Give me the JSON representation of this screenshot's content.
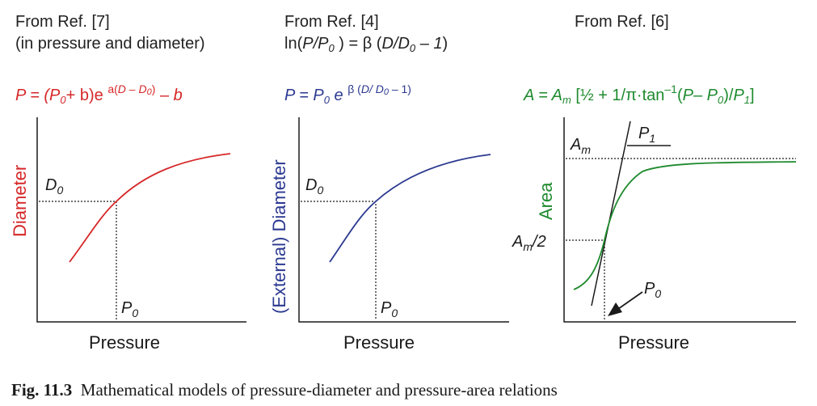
{
  "panels": [
    {
      "ref_line1": "From Ref. [7]",
      "ref_line2": "(in pressure and diameter)",
      "eq": {
        "a": "P = (P",
        "sub0": "0",
        "b": "+ b)e",
        "sup_a": "a(",
        "sup_D": "D – D",
        "sup_sub": "0",
        "sup_close": ")",
        "tail": " – b"
      },
      "ylabel": "Diameter",
      "xlabel": "Pressure",
      "point_y": "D",
      "point_y_sub": "0",
      "point_x": "P",
      "point_x_sub": "0"
    },
    {
      "ref_line1": "From Ref. [4]",
      "ref_line2": {
        "a": "ln(",
        "b": "P/P",
        "sub": "0",
        "c": " ) = β (",
        "d": "D/D",
        "sub2": "0",
        "e": " – 1",
        "f": ")"
      },
      "eq": {
        "a": "P = P",
        "sub0": "0",
        "b": " e",
        "sup_a": "β (",
        "sup_D": "D/ D",
        "sup_sub": "0",
        "sup_close": " – 1)"
      },
      "ylabel": "(External) Diameter",
      "xlabel": "Pressure",
      "point_y": "D",
      "point_y_sub": "0",
      "point_x": "P",
      "point_x_sub": "0"
    },
    {
      "ref_line1": "From Ref. [6]",
      "eq": {
        "a": "A = A",
        "sub_m": "m",
        "b": " [½ + 1/π·tan",
        "sup": "–1",
        "c": "(",
        "d": "P– P",
        "sub0": "0",
        "e": ")/",
        "f": "P",
        "sub1": "1",
        "g": "]"
      },
      "ylabel": "Area",
      "xlabel": "Pressure",
      "label_am": "A",
      "label_am_sub": "m",
      "label_am2": "A",
      "label_am2_sub": "m",
      "label_am2_tail": "/2",
      "label_p1": "P",
      "label_p1_sub": "1",
      "label_p0": "P",
      "label_p0_sub": "0"
    }
  ],
  "caption": {
    "bold": "Fig. 11.3",
    "text": "Mathematical models of pressure-diameter and pressure-area relations"
  },
  "colors": {
    "panel1": "#d62728",
    "panel2": "#2b3990",
    "panel3": "#1e8a2e",
    "axes": "#1a1a1a"
  },
  "chart_data": [
    {
      "type": "line",
      "title": "",
      "xlabel": "Pressure",
      "ylabel": "Diameter",
      "model": "P = (P0 + b)e^(a(D – D0)) – b",
      "marked_point": [
        "P0",
        "D0"
      ],
      "grid": false
    },
    {
      "type": "line",
      "title": "",
      "xlabel": "Pressure",
      "ylabel": "(External) Diameter",
      "model": "P = P0 e^(β(D/D0 – 1))",
      "marked_point": [
        "P0",
        "D0"
      ],
      "grid": false
    },
    {
      "type": "line",
      "title": "",
      "xlabel": "Pressure",
      "ylabel": "Area",
      "model": "A = Am [½ + 1/π·tan–1(P– P0)/P1]",
      "marked_point": [
        "P0",
        "Am/2"
      ],
      "asymptote": "Am",
      "tangent_slope_label": "P1",
      "grid": false
    }
  ]
}
